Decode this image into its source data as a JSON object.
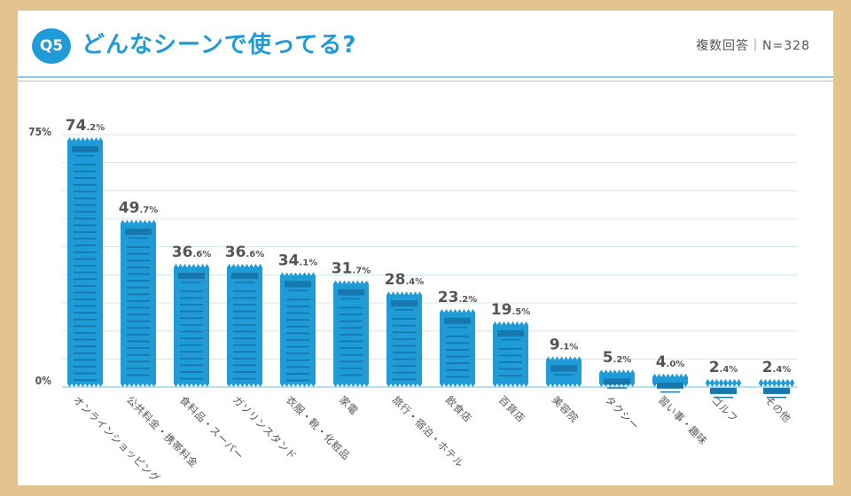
{
  "header": {
    "badge": "Q5",
    "title": "どんなシーンで使ってる?",
    "meta": "複数回答｜N=328"
  },
  "colors": {
    "bar": "#1f9bd8",
    "bar_stripe": "#1678ad",
    "grid": "#cfe8f3",
    "text": "#555555",
    "background": "#e3c48f"
  },
  "chart_data": {
    "type": "bar",
    "ylim": [
      0,
      75
    ],
    "yticks": [
      "0%",
      "75%"
    ],
    "grid": true,
    "categories": [
      "オンラインショッピング",
      "公共料金・携帯料金",
      "食料品・スーパー",
      "ガソリンスタンド",
      "衣服・靴・化粧品",
      "家電",
      "旅行・宿泊・ホテル",
      "飲食店",
      "百貨店",
      "美容院",
      "タクシー",
      "習い事・趣味",
      "ゴルフ",
      "その他"
    ],
    "values": [
      74.2,
      49.7,
      36.6,
      36.6,
      34.1,
      31.7,
      28.4,
      23.2,
      19.5,
      9.1,
      5.2,
      4.0,
      2.4,
      2.4
    ],
    "value_labels": [
      [
        "74",
        ".2%"
      ],
      [
        "49",
        ".7%"
      ],
      [
        "36",
        ".6%"
      ],
      [
        "36",
        ".6%"
      ],
      [
        "34",
        ".1%"
      ],
      [
        "31",
        ".7%"
      ],
      [
        "28",
        ".4%"
      ],
      [
        "23",
        ".2%"
      ],
      [
        "19",
        ".5%"
      ],
      [
        "9",
        ".1%"
      ],
      [
        "5",
        ".2%"
      ],
      [
        "4",
        ".0%"
      ],
      [
        "2",
        ".4%"
      ],
      [
        "2",
        ".4%"
      ]
    ]
  }
}
